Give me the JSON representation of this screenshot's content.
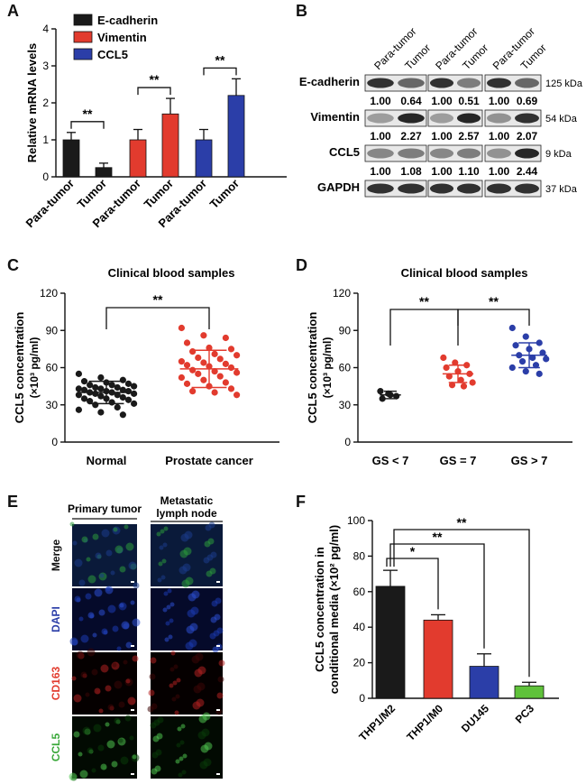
{
  "panels": {
    "A": {
      "letter": "A",
      "chart_data": {
        "type": "bar",
        "ylabel": "Relative mRNA levels",
        "ylim": [
          0,
          4
        ],
        "yticks": [
          "0",
          "1",
          "2",
          "3",
          "4"
        ],
        "series": [
          {
            "name": "E-cadherin",
            "color": "#1a1a1a",
            "categories": [
              "Para-tumor",
              "Tumor"
            ],
            "values": [
              1.0,
              0.25
            ],
            "errors": [
              0.2,
              0.12
            ],
            "sig": "**"
          },
          {
            "name": "Vimentin",
            "color": "#e23b2e",
            "categories": [
              "Para-tumor",
              "Tumor"
            ],
            "values": [
              1.0,
              1.7
            ],
            "errors": [
              0.28,
              0.42
            ],
            "sig": "**"
          },
          {
            "name": "CCL5",
            "color": "#2b3ea8",
            "categories": [
              "Para-tumor",
              "Tumor"
            ],
            "values": [
              1.0,
              2.2
            ],
            "errors": [
              0.28,
              0.45
            ],
            "sig": "**"
          }
        ]
      }
    },
    "B": {
      "letter": "B",
      "columns": [
        "Para-tumor",
        "Tumor",
        "Para-tumor",
        "Tumor",
        "Para-tumor",
        "Tumor"
      ],
      "rows": [
        {
          "label": "E-cadherin",
          "kda": "125 kDa",
          "values": [
            "1.00",
            "0.64",
            "1.00",
            "0.51",
            "1.00",
            "0.69"
          ],
          "intensity": [
            0.85,
            0.6,
            0.85,
            0.5,
            0.85,
            0.6
          ]
        },
        {
          "label": "Vimentin",
          "kda": "54 kDa",
          "values": [
            "1.00",
            "2.27",
            "1.00",
            "2.57",
            "1.00",
            "2.07"
          ],
          "intensity": [
            0.35,
            0.9,
            0.35,
            0.9,
            0.4,
            0.85
          ]
        },
        {
          "label": "CCL5",
          "kda": "9 kDa",
          "values": [
            "1.00",
            "1.08",
            "1.00",
            "1.10",
            "1.00",
            "2.44"
          ],
          "intensity": [
            0.45,
            0.5,
            0.45,
            0.5,
            0.4,
            0.9
          ]
        },
        {
          "label": "GAPDH",
          "kda": "37 kDa",
          "values": [],
          "intensity": [
            0.85,
            0.85,
            0.85,
            0.85,
            0.85,
            0.85
          ]
        }
      ]
    },
    "C": {
      "letter": "C",
      "chart_data": {
        "type": "scatter",
        "title": "Clinical blood samples",
        "ylabel": "CCL5 concentration",
        "ylabel2": "(×10³ pg/ml)",
        "ylim": [
          0,
          120
        ],
        "yticks": [
          "0",
          "30",
          "60",
          "90",
          "120"
        ],
        "categories": [
          "Normal",
          "Prostate cancer"
        ],
        "colors": [
          "#1a1a1a",
          "#e23b2e"
        ],
        "means": [
          40,
          59
        ],
        "sds": [
          9,
          15
        ],
        "sig": "**",
        "points": [
          [
            55,
            52,
            50,
            49,
            48,
            47,
            46,
            46,
            45,
            44,
            44,
            43,
            43,
            42,
            42,
            41,
            41,
            40,
            40,
            39,
            39,
            38,
            38,
            37,
            36,
            35,
            35,
            34,
            33,
            32,
            31,
            30,
            28,
            26,
            24,
            22
          ],
          [
            92,
            86,
            84,
            80,
            76,
            75,
            73,
            71,
            70,
            68,
            67,
            65,
            64,
            63,
            62,
            61,
            60,
            58,
            57,
            56,
            55,
            53,
            52,
            50,
            48,
            47,
            45,
            43,
            41,
            40,
            38
          ]
        ]
      }
    },
    "D": {
      "letter": "D",
      "chart_data": {
        "type": "scatter",
        "title": "Clinical blood samples",
        "ylabel": "CCL5 concentration",
        "ylabel2": "(×10³ pg/ml)",
        "ylim": [
          0,
          120
        ],
        "yticks": [
          "0",
          "30",
          "60",
          "90",
          "120"
        ],
        "categories": [
          "GS < 7",
          "GS = 7",
          "GS > 7"
        ],
        "colors": [
          "#1a1a1a",
          "#e23b2e",
          "#2b3ea8"
        ],
        "means": [
          38,
          55,
          70
        ],
        "sds": [
          3,
          7,
          10
        ],
        "sig": [
          "**",
          "**"
        ],
        "points": [
          [
            41,
            39,
            37,
            35,
            38
          ],
          [
            68,
            64,
            62,
            60,
            57,
            55,
            53,
            50,
            48,
            46,
            45
          ],
          [
            92,
            85,
            80,
            78,
            75,
            72,
            70,
            68,
            67,
            65,
            62,
            60,
            57,
            55
          ]
        ]
      }
    },
    "E": {
      "letter": "E",
      "col_titles": [
        "Primary tumor",
        "Metastatic lymph node"
      ],
      "rows": [
        {
          "label": "Merge",
          "color": "#111111"
        },
        {
          "label": "DAPI",
          "color": "#2b3ea8"
        },
        {
          "label": "CD163",
          "color": "#e23b2e"
        },
        {
          "label": "CCL5",
          "color": "#3aa83a"
        }
      ]
    },
    "F": {
      "letter": "F",
      "chart_data": {
        "type": "bar",
        "ylabel": "CCL5 concentration in",
        "ylabel2": "conditional media (×10² pg/ml)",
        "ylim": [
          0,
          100
        ],
        "yticks": [
          "0",
          "20",
          "40",
          "60",
          "80",
          "100"
        ],
        "categories": [
          "THP1/M2",
          "THP1/M0",
          "DU145",
          "PC3"
        ],
        "values": [
          63,
          44,
          18,
          7
        ],
        "errors": [
          9,
          3,
          7,
          2
        ],
        "colors": [
          "#1a1a1a",
          "#e23b2e",
          "#2b3ea8",
          "#5fc23a"
        ],
        "sig": [
          "*",
          "**",
          "**"
        ]
      }
    }
  }
}
